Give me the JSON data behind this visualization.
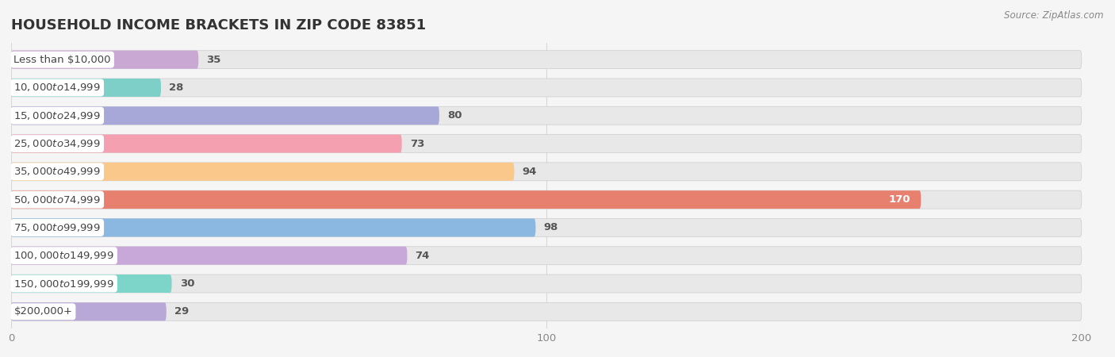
{
  "title": "HOUSEHOLD INCOME BRACKETS IN ZIP CODE 83851",
  "source": "Source: ZipAtlas.com",
  "categories": [
    "Less than $10,000",
    "$10,000 to $14,999",
    "$15,000 to $24,999",
    "$25,000 to $34,999",
    "$35,000 to $49,999",
    "$50,000 to $74,999",
    "$75,000 to $99,999",
    "$100,000 to $149,999",
    "$150,000 to $199,999",
    "$200,000+"
  ],
  "values": [
    35,
    28,
    80,
    73,
    94,
    170,
    98,
    74,
    30,
    29
  ],
  "bar_colors": [
    "#c9a8d4",
    "#7dcfc8",
    "#a8a8d8",
    "#f4a0b0",
    "#f9c88a",
    "#e88070",
    "#8ab8e0",
    "#c8a8d8",
    "#7dd4c8",
    "#b8a8d8"
  ],
  "background_color": "#f5f5f5",
  "bar_bg_color": "#e8e8e8",
  "label_bg_color": "#ffffff",
  "xlim": [
    0,
    200
  ],
  "title_fontsize": 13,
  "label_fontsize": 9.5,
  "value_fontsize": 9.5,
  "bar_height": 0.65,
  "value_label_color_inside": "#ffffff",
  "value_label_color_outside": "#555555",
  "grid_color": "#d8d8d8",
  "label_text_color": "#444444"
}
